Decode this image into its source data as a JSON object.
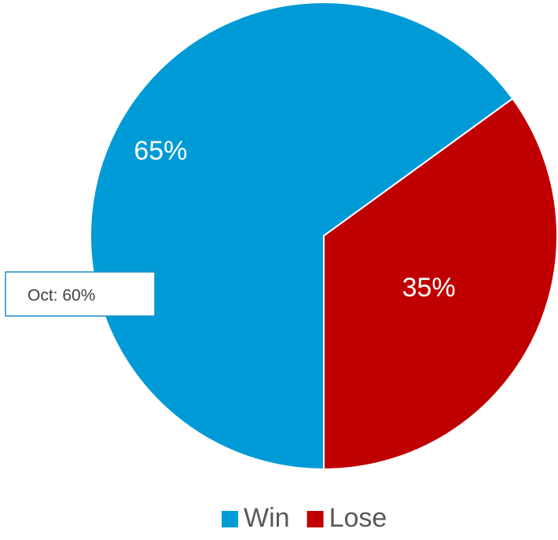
{
  "chart_data": {
    "type": "pie",
    "categories": [
      "Win",
      "Lose"
    ],
    "values": [
      65,
      35
    ],
    "value_labels": [
      "65%",
      "35%"
    ],
    "colors": [
      "#009bd6",
      "#c00000"
    ],
    "annotation": "Oct: 60%",
    "legend": "bottom"
  }
}
